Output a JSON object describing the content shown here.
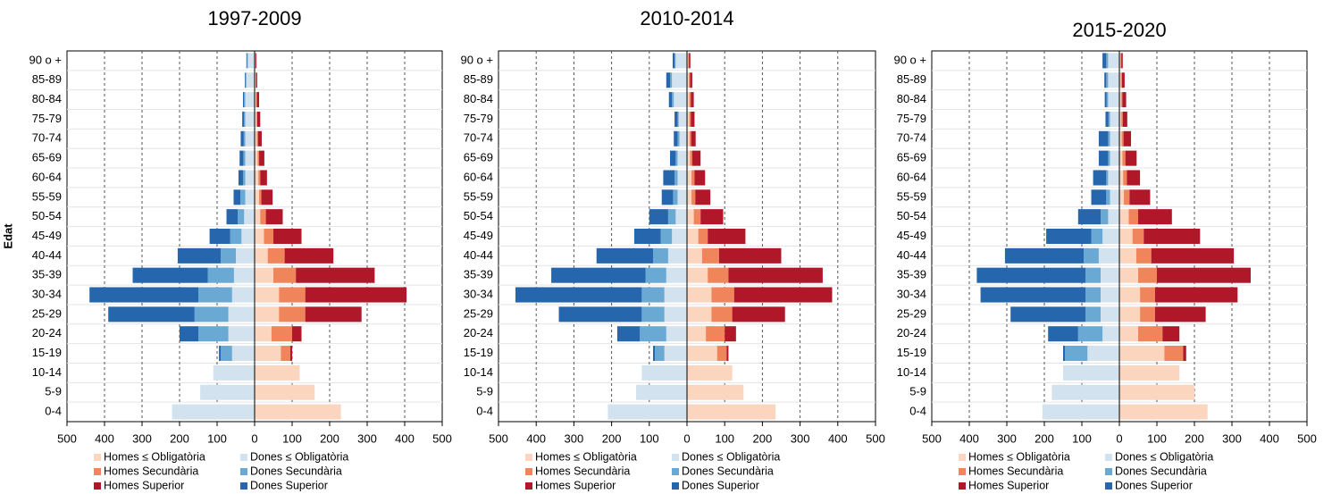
{
  "chart_data": [
    {
      "type": "pyramid",
      "title": "1997-2009",
      "ylabel": "Edat",
      "categories": [
        "90 o +",
        "85-89",
        "80-84",
        "75-79",
        "70-74",
        "65-69",
        "60-64",
        "55-59",
        "50-54",
        "45-49",
        "40-44",
        "35-39",
        "30-34",
        "25-29",
        "20-24",
        "15-19",
        "10-14",
        "5-9",
        "0-4"
      ],
      "xlim": [
        -500,
        500
      ],
      "xticks": [
        {
          "value": -500,
          "label": "500"
        },
        {
          "value": -400,
          "label": "400"
        },
        {
          "value": -300,
          "label": "300"
        },
        {
          "value": -200,
          "label": "200"
        },
        {
          "value": -100,
          "label": "100"
        },
        0,
        100,
        200,
        300,
        400,
        500
      ],
      "grid": true,
      "series": [
        {
          "name": "Homes ≤ Obligatòria",
          "color": "#fbd5bd",
          "values": [
            2,
            3,
            4,
            5,
            6,
            8,
            10,
            12,
            15,
            25,
            35,
            50,
            65,
            65,
            45,
            70,
            120,
            160,
            230
          ]
        },
        {
          "name": "Dones ≤ Obligatòria",
          "color": "#d2e3ef",
          "values": [
            -18,
            -22,
            -25,
            -25,
            -25,
            -25,
            -25,
            -25,
            -28,
            -35,
            -50,
            -55,
            -60,
            -70,
            -70,
            -60,
            -110,
            -145,
            -220
          ]
        },
        {
          "name": "Homes Secundària",
          "color": "#f0845a",
          "values": [
            1,
            1,
            2,
            2,
            3,
            4,
            5,
            6,
            15,
            25,
            45,
            60,
            70,
            70,
            55,
            25,
            0,
            0,
            0
          ]
        },
        {
          "name": "Dones Secundària",
          "color": "#6aa9d4",
          "values": [
            -2,
            -2,
            -3,
            -3,
            -4,
            -5,
            -6,
            -13,
            -17,
            -30,
            -40,
            -70,
            -90,
            -90,
            -80,
            -30,
            0,
            0,
            0
          ]
        },
        {
          "name": "Homes Superior",
          "color": "#b0182a",
          "values": [
            2,
            3,
            6,
            8,
            10,
            14,
            18,
            30,
            45,
            75,
            130,
            210,
            270,
            150,
            25,
            5,
            0,
            0,
            0
          ]
        },
        {
          "name": "Dones Superior",
          "color": "#2566ad",
          "values": [
            -2,
            -2,
            -3,
            -5,
            -8,
            -10,
            -12,
            -18,
            -30,
            -55,
            -115,
            -200,
            -290,
            -230,
            -50,
            -5,
            0,
            0,
            0
          ]
        }
      ]
    },
    {
      "type": "pyramid",
      "title": "2010-2014",
      "categories": [
        "90 o +",
        "85-89",
        "80-84",
        "75-79",
        "70-74",
        "65-69",
        "60-64",
        "55-59",
        "50-54",
        "45-49",
        "40-44",
        "35-39",
        "30-34",
        "25-29",
        "20-24",
        "15-19",
        "10-14",
        "5-9",
        "0-4"
      ],
      "xlim": [
        -500,
        500
      ],
      "xticks": [
        {
          "value": -500,
          "label": "500"
        },
        {
          "value": -400,
          "label": "400"
        },
        {
          "value": -300,
          "label": "300"
        },
        {
          "value": -200,
          "label": "200"
        },
        {
          "value": -100,
          "label": "100"
        },
        0,
        100,
        200,
        300,
        400,
        500
      ],
      "grid": true,
      "series": [
        {
          "name": "Homes ≤ Obligatòria",
          "color": "#fbd5bd",
          "values": [
            3,
            5,
            6,
            6,
            7,
            8,
            12,
            12,
            18,
            30,
            40,
            55,
            65,
            65,
            50,
            80,
            120,
            150,
            235
          ]
        },
        {
          "name": "Dones ≤ Obligatòria",
          "color": "#d2e3ef",
          "values": [
            -30,
            -40,
            -35,
            -22,
            -20,
            -25,
            -25,
            -25,
            -30,
            -40,
            -50,
            -55,
            -60,
            -60,
            -55,
            -60,
            -120,
            -135,
            -210
          ]
        },
        {
          "name": "Homes Secundària",
          "color": "#f0845a",
          "values": [
            2,
            3,
            4,
            4,
            4,
            6,
            8,
            10,
            18,
            25,
            45,
            55,
            60,
            55,
            50,
            25,
            0,
            0,
            0
          ]
        },
        {
          "name": "Dones Secundària",
          "color": "#6aa9d4",
          "values": [
            -3,
            -5,
            -5,
            -3,
            -5,
            -5,
            -8,
            -12,
            -20,
            -30,
            -40,
            -55,
            -60,
            -60,
            -70,
            -25,
            0,
            0,
            0
          ]
        },
        {
          "name": "Homes Superior",
          "color": "#b0182a",
          "values": [
            4,
            6,
            8,
            10,
            12,
            22,
            28,
            40,
            60,
            100,
            165,
            250,
            260,
            140,
            30,
            5,
            0,
            0,
            0
          ]
        },
        {
          "name": "Dones Superior",
          "color": "#2566ad",
          "values": [
            -5,
            -10,
            -8,
            -8,
            -10,
            -15,
            -30,
            -30,
            -50,
            -70,
            -150,
            -250,
            -335,
            -220,
            -60,
            -5,
            0,
            0,
            0
          ]
        }
      ]
    },
    {
      "type": "pyramid",
      "title": "2015-2020",
      "categories": [
        "90 o +",
        "85-89",
        "80-84",
        "75-79",
        "70-74",
        "65-69",
        "60-64",
        "55-59",
        "50-54",
        "45-49",
        "40-44",
        "35-39",
        "30-34",
        "25-29",
        "20-24",
        "15-19",
        "10-14",
        "5-9",
        "0-4"
      ],
      "xlim": [
        -500,
        500
      ],
      "xticks": [
        {
          "value": -500,
          "label": "500"
        },
        {
          "value": -400,
          "label": "400"
        },
        {
          "value": -300,
          "label": "300"
        },
        {
          "value": -200,
          "label": "200"
        },
        {
          "value": -100,
          "label": "100"
        },
        0,
        100,
        200,
        300,
        400,
        500
      ],
      "grid": true,
      "series": [
        {
          "name": "Homes ≤ Obligatòria",
          "color": "#fbd5bd",
          "values": [
            3,
            4,
            5,
            5,
            6,
            8,
            10,
            12,
            25,
            35,
            45,
            50,
            55,
            55,
            50,
            120,
            160,
            200,
            235
          ]
        },
        {
          "name": "Dones ≤ Obligatòria",
          "color": "#d2e3ef",
          "values": [
            -30,
            -30,
            -30,
            -25,
            -25,
            -25,
            -30,
            -25,
            -30,
            -45,
            -55,
            -50,
            -50,
            -50,
            -45,
            -85,
            -150,
            -180,
            -205
          ]
        },
        {
          "name": "Homes Secundària",
          "color": "#f0845a",
          "values": [
            2,
            3,
            3,
            4,
            5,
            8,
            10,
            15,
            25,
            30,
            40,
            50,
            40,
            40,
            65,
            50,
            0,
            0,
            0
          ]
        },
        {
          "name": "Dones Secundària",
          "color": "#6aa9d4",
          "values": [
            -5,
            -5,
            -4,
            -4,
            -5,
            -5,
            -5,
            -10,
            -20,
            -30,
            -40,
            -40,
            -40,
            -40,
            -65,
            -60,
            0,
            0,
            0
          ]
        },
        {
          "name": "Homes Superior",
          "color": "#b0182a",
          "values": [
            4,
            7,
            10,
            12,
            20,
            30,
            35,
            55,
            90,
            150,
            220,
            250,
            220,
            135,
            45,
            8,
            0,
            0,
            0
          ]
        },
        {
          "name": "Dones Superior",
          "color": "#2566ad",
          "values": [
            -10,
            -5,
            -5,
            -8,
            -25,
            -25,
            -35,
            -40,
            -60,
            -120,
            -210,
            -290,
            -280,
            -200,
            -80,
            -5,
            0,
            0,
            0
          ]
        }
      ]
    }
  ]
}
